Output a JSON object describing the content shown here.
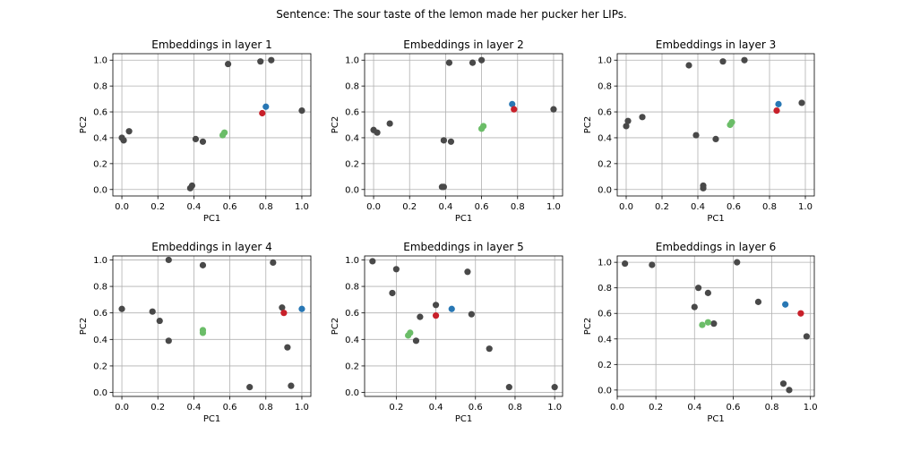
{
  "figure_title": "Sentence: The sour taste of the lemon made her pucker her LIPs.",
  "colors": {
    "gray": "#494949",
    "green": "#6bbd68",
    "blue": "#2877b4",
    "red": "#c8202a"
  },
  "chart_data": [
    {
      "type": "scatter",
      "title": "Embeddings in layer 1",
      "xlabel": "PC1",
      "ylabel": "PC2",
      "xlim": [
        -0.05,
        1.05
      ],
      "ylim": [
        -0.05,
        1.05
      ],
      "xticks": [
        "0.0",
        "0.2",
        "0.4",
        "0.6",
        "0.8",
        "1.0"
      ],
      "yticks": [
        "0.0",
        "0.2",
        "0.4",
        "0.6",
        "0.8",
        "1.0"
      ],
      "grid": true,
      "series": [
        {
          "color": "gray",
          "points": [
            [
              0.0,
              0.4
            ],
            [
              0.01,
              0.38
            ],
            [
              0.04,
              0.45
            ],
            [
              0.38,
              0.01
            ],
            [
              0.39,
              0.03
            ],
            [
              0.41,
              0.39
            ],
            [
              0.45,
              0.37
            ],
            [
              0.59,
              0.97
            ],
            [
              0.77,
              0.99
            ],
            [
              0.83,
              1.0
            ],
            [
              1.0,
              0.61
            ]
          ]
        },
        {
          "color": "green",
          "points": [
            [
              0.56,
              0.42
            ],
            [
              0.57,
              0.44
            ]
          ]
        },
        {
          "color": "blue",
          "points": [
            [
              0.8,
              0.64
            ]
          ]
        },
        {
          "color": "red",
          "points": [
            [
              0.78,
              0.59
            ]
          ]
        }
      ]
    },
    {
      "type": "scatter",
      "title": "Embeddings in layer 2",
      "xlabel": "PC1",
      "ylabel": "PC2",
      "xlim": [
        -0.05,
        1.05
      ],
      "ylim": [
        -0.05,
        1.05
      ],
      "xticks": [
        "0.0",
        "0.2",
        "0.4",
        "0.6",
        "0.8",
        "1.0"
      ],
      "yticks": [
        "0.0",
        "0.2",
        "0.4",
        "0.6",
        "0.8",
        "1.0"
      ],
      "grid": true,
      "series": [
        {
          "color": "gray",
          "points": [
            [
              0.0,
              0.46
            ],
            [
              0.02,
              0.44
            ],
            [
              0.09,
              0.51
            ],
            [
              0.38,
              0.02
            ],
            [
              0.39,
              0.02
            ],
            [
              0.39,
              0.38
            ],
            [
              0.43,
              0.37
            ],
            [
              0.42,
              0.98
            ],
            [
              0.55,
              0.98
            ],
            [
              0.6,
              1.0
            ],
            [
              1.0,
              0.62
            ]
          ]
        },
        {
          "color": "green",
          "points": [
            [
              0.6,
              0.47
            ],
            [
              0.61,
              0.49
            ]
          ]
        },
        {
          "color": "blue",
          "points": [
            [
              0.77,
              0.66
            ]
          ]
        },
        {
          "color": "red",
          "points": [
            [
              0.78,
              0.62
            ]
          ]
        }
      ]
    },
    {
      "type": "scatter",
      "title": "Embeddings in layer 3",
      "xlabel": "PC1",
      "ylabel": "PC2",
      "xlim": [
        -0.05,
        1.05
      ],
      "ylim": [
        -0.05,
        1.05
      ],
      "xticks": [
        "0.0",
        "0.2",
        "0.4",
        "0.6",
        "0.8",
        "1.0"
      ],
      "yticks": [
        "0.0",
        "0.2",
        "0.4",
        "0.6",
        "0.8",
        "1.0"
      ],
      "grid": true,
      "series": [
        {
          "color": "gray",
          "points": [
            [
              0.0,
              0.49
            ],
            [
              0.01,
              0.53
            ],
            [
              0.09,
              0.56
            ],
            [
              0.35,
              0.96
            ],
            [
              0.39,
              0.42
            ],
            [
              0.43,
              0.03
            ],
            [
              0.43,
              0.01
            ],
            [
              0.5,
              0.39
            ],
            [
              0.54,
              0.99
            ],
            [
              0.66,
              1.0
            ],
            [
              0.98,
              0.67
            ]
          ]
        },
        {
          "color": "green",
          "points": [
            [
              0.58,
              0.5
            ],
            [
              0.59,
              0.52
            ]
          ]
        },
        {
          "color": "blue",
          "points": [
            [
              0.85,
              0.66
            ]
          ]
        },
        {
          "color": "red",
          "points": [
            [
              0.84,
              0.61
            ]
          ]
        }
      ]
    },
    {
      "type": "scatter",
      "title": "Embeddings in layer 4",
      "xlabel": "PC1",
      "ylabel": "PC2",
      "xlim": [
        -0.05,
        1.05
      ],
      "ylim": [
        -0.03,
        1.03
      ],
      "xticks": [
        "0.0",
        "0.2",
        "0.4",
        "0.6",
        "0.8",
        "1.0"
      ],
      "yticks": [
        "0.0",
        "0.2",
        "0.4",
        "0.6",
        "0.8",
        "1.0"
      ],
      "grid": true,
      "series": [
        {
          "color": "gray",
          "points": [
            [
              0.0,
              0.63
            ],
            [
              0.17,
              0.61
            ],
            [
              0.21,
              0.54
            ],
            [
              0.26,
              1.0
            ],
            [
              0.26,
              0.39
            ],
            [
              0.45,
              0.96
            ],
            [
              0.71,
              0.04
            ],
            [
              0.84,
              0.98
            ],
            [
              0.89,
              0.64
            ],
            [
              0.92,
              0.34
            ],
            [
              0.94,
              0.05
            ]
          ]
        },
        {
          "color": "green",
          "points": [
            [
              0.45,
              0.47
            ],
            [
              0.45,
              0.45
            ]
          ]
        },
        {
          "color": "blue",
          "points": [
            [
              1.0,
              0.63
            ]
          ]
        },
        {
          "color": "red",
          "points": [
            [
              0.9,
              0.6
            ]
          ]
        }
      ]
    },
    {
      "type": "scatter",
      "title": "Embeddings in layer 5",
      "xlabel": "PC1",
      "ylabel": "PC2",
      "xlim": [
        0.04,
        1.04
      ],
      "ylim": [
        -0.03,
        1.03
      ],
      "xticks": [
        "0.2",
        "0.4",
        "0.6",
        "0.8",
        "1.0"
      ],
      "yticks": [
        "0.0",
        "0.2",
        "0.4",
        "0.6",
        "0.8",
        "1.0"
      ],
      "grid": true,
      "series": [
        {
          "color": "gray",
          "points": [
            [
              0.08,
              0.99
            ],
            [
              0.18,
              0.75
            ],
            [
              0.2,
              0.93
            ],
            [
              0.3,
              0.39
            ],
            [
              0.32,
              0.57
            ],
            [
              0.4,
              0.66
            ],
            [
              0.56,
              0.91
            ],
            [
              0.58,
              0.59
            ],
            [
              0.67,
              0.33
            ],
            [
              0.77,
              0.04
            ],
            [
              1.0,
              0.04
            ]
          ]
        },
        {
          "color": "green",
          "points": [
            [
              0.26,
              0.43
            ],
            [
              0.27,
              0.45
            ]
          ]
        },
        {
          "color": "blue",
          "points": [
            [
              0.48,
              0.63
            ]
          ]
        },
        {
          "color": "red",
          "points": [
            [
              0.4,
              0.58
            ]
          ]
        }
      ]
    },
    {
      "type": "scatter",
      "title": "Embeddings in layer 6",
      "xlabel": "PC1",
      "ylabel": "PC2",
      "xlim": [
        0.0,
        1.02
      ],
      "ylim": [
        -0.05,
        1.05
      ],
      "xticks": [
        "0.0",
        "0.2",
        "0.4",
        "0.6",
        "0.8",
        "1.0"
      ],
      "yticks": [
        "0.0",
        "0.2",
        "0.4",
        "0.6",
        "0.8",
        "1.0"
      ],
      "grid": true,
      "series": [
        {
          "color": "gray",
          "points": [
            [
              0.04,
              0.99
            ],
            [
              0.18,
              0.98
            ],
            [
              0.4,
              0.65
            ],
            [
              0.42,
              0.8
            ],
            [
              0.47,
              0.76
            ],
            [
              0.5,
              0.52
            ],
            [
              0.62,
              1.0
            ],
            [
              0.73,
              0.69
            ],
            [
              0.86,
              0.05
            ],
            [
              0.89,
              0.0
            ],
            [
              0.98,
              0.42
            ]
          ]
        },
        {
          "color": "green",
          "points": [
            [
              0.44,
              0.51
            ],
            [
              0.47,
              0.53
            ]
          ]
        },
        {
          "color": "blue",
          "points": [
            [
              0.87,
              0.67
            ]
          ]
        },
        {
          "color": "red",
          "points": [
            [
              0.95,
              0.6
            ]
          ]
        }
      ]
    }
  ]
}
